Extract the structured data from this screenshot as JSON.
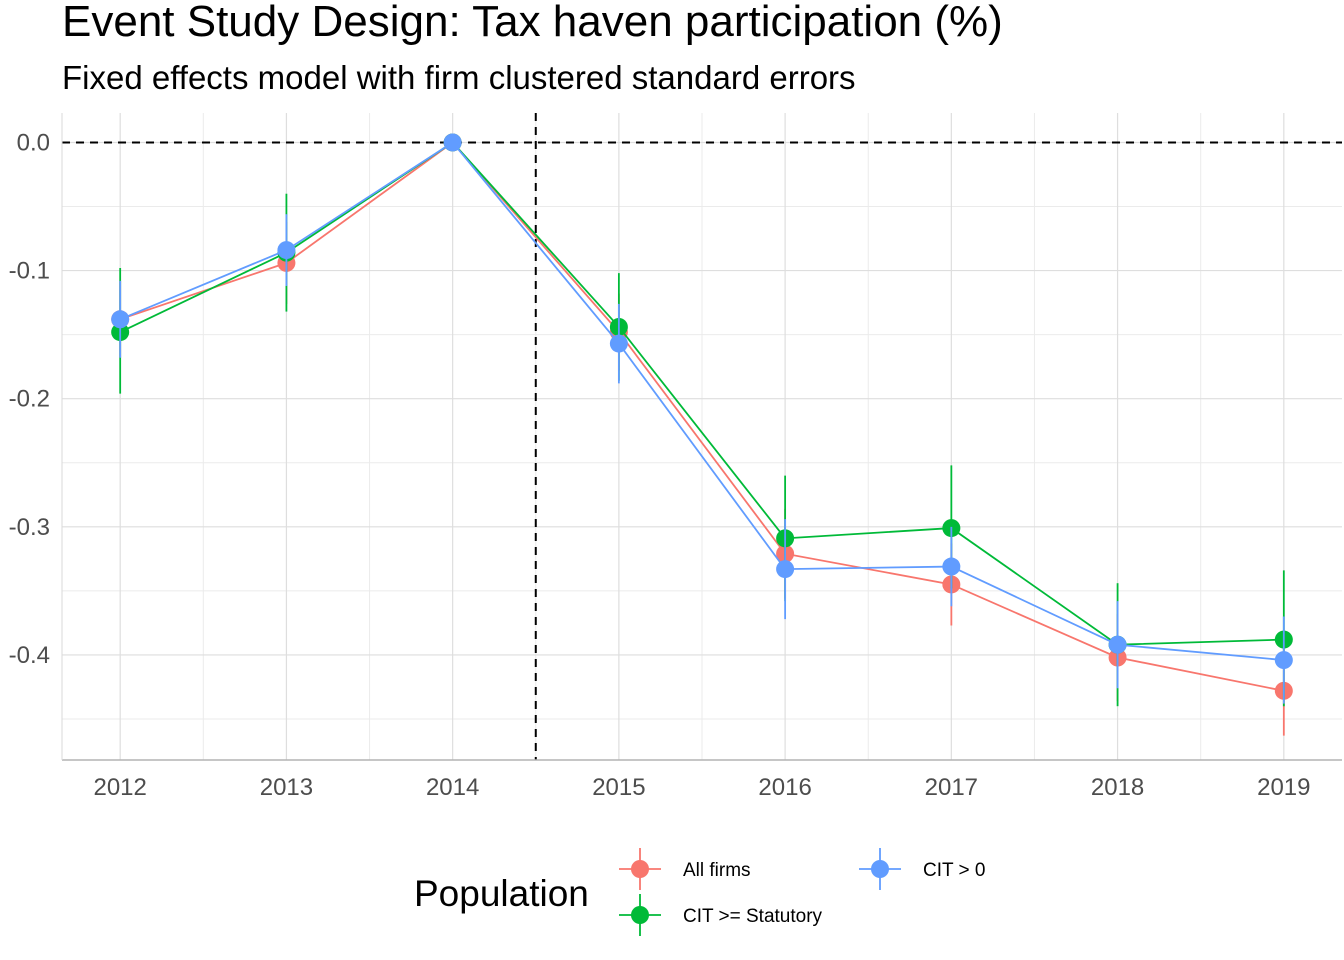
{
  "chart_data": {
    "type": "line",
    "title": "Event Study Design: Tax haven participation (%)",
    "subtitle": "Fixed effects model with firm clustered standard errors",
    "xlabel": "",
    "ylabel": "",
    "x": [
      2012,
      2013,
      2014,
      2015,
      2016,
      2017,
      2018,
      2019
    ],
    "x_tick_labels": [
      "2012",
      "2013",
      "2014",
      "2015",
      "2016",
      "2017",
      "2018",
      "2019"
    ],
    "xlim": [
      2011.65,
      2019.35
    ],
    "ylim": [
      -0.482,
      0.023
    ],
    "y_ticks": [
      0.0,
      -0.1,
      -0.2,
      -0.3,
      -0.4
    ],
    "y_tick_labels": [
      "0.0",
      "-0.1",
      "-0.2",
      "-0.3",
      "-0.4"
    ],
    "reference_lines": {
      "horizontal_y": 0.0,
      "vertical_x": 2014.5,
      "style": "dashed"
    },
    "grid": true,
    "legend": {
      "title": "Population",
      "position": "bottom"
    },
    "series": [
      {
        "name": "All firms",
        "color": "#F8766D",
        "values": [
          -0.138,
          -0.094,
          0.0,
          -0.148,
          -0.321,
          -0.345,
          -0.402,
          -0.428
        ],
        "lower": [
          -0.168,
          -0.126,
          0.0,
          -0.178,
          -0.356,
          -0.377,
          -0.436,
          -0.463
        ],
        "upper": [
          -0.108,
          -0.062,
          0.0,
          -0.118,
          -0.286,
          -0.313,
          -0.368,
          -0.393
        ]
      },
      {
        "name": "CIT >= Statutory",
        "color": "#00BA38",
        "values": [
          -0.148,
          -0.086,
          0.0,
          -0.144,
          -0.309,
          -0.301,
          -0.392,
          -0.388
        ],
        "lower": [
          -0.196,
          -0.132,
          0.0,
          -0.186,
          -0.358,
          -0.348,
          -0.44,
          -0.44
        ],
        "upper": [
          -0.098,
          -0.04,
          0.0,
          -0.102,
          -0.26,
          -0.252,
          -0.344,
          -0.334
        ]
      },
      {
        "name": "CIT > 0",
        "color": "#619CFF",
        "values": [
          -0.138,
          -0.084,
          0.0,
          -0.157,
          -0.333,
          -0.331,
          -0.392,
          -0.404
        ],
        "lower": [
          -0.168,
          -0.112,
          0.0,
          -0.188,
          -0.372,
          -0.362,
          -0.426,
          -0.438
        ],
        "upper": [
          -0.108,
          -0.056,
          0.0,
          -0.126,
          -0.294,
          -0.3,
          -0.358,
          -0.37
        ]
      }
    ]
  }
}
